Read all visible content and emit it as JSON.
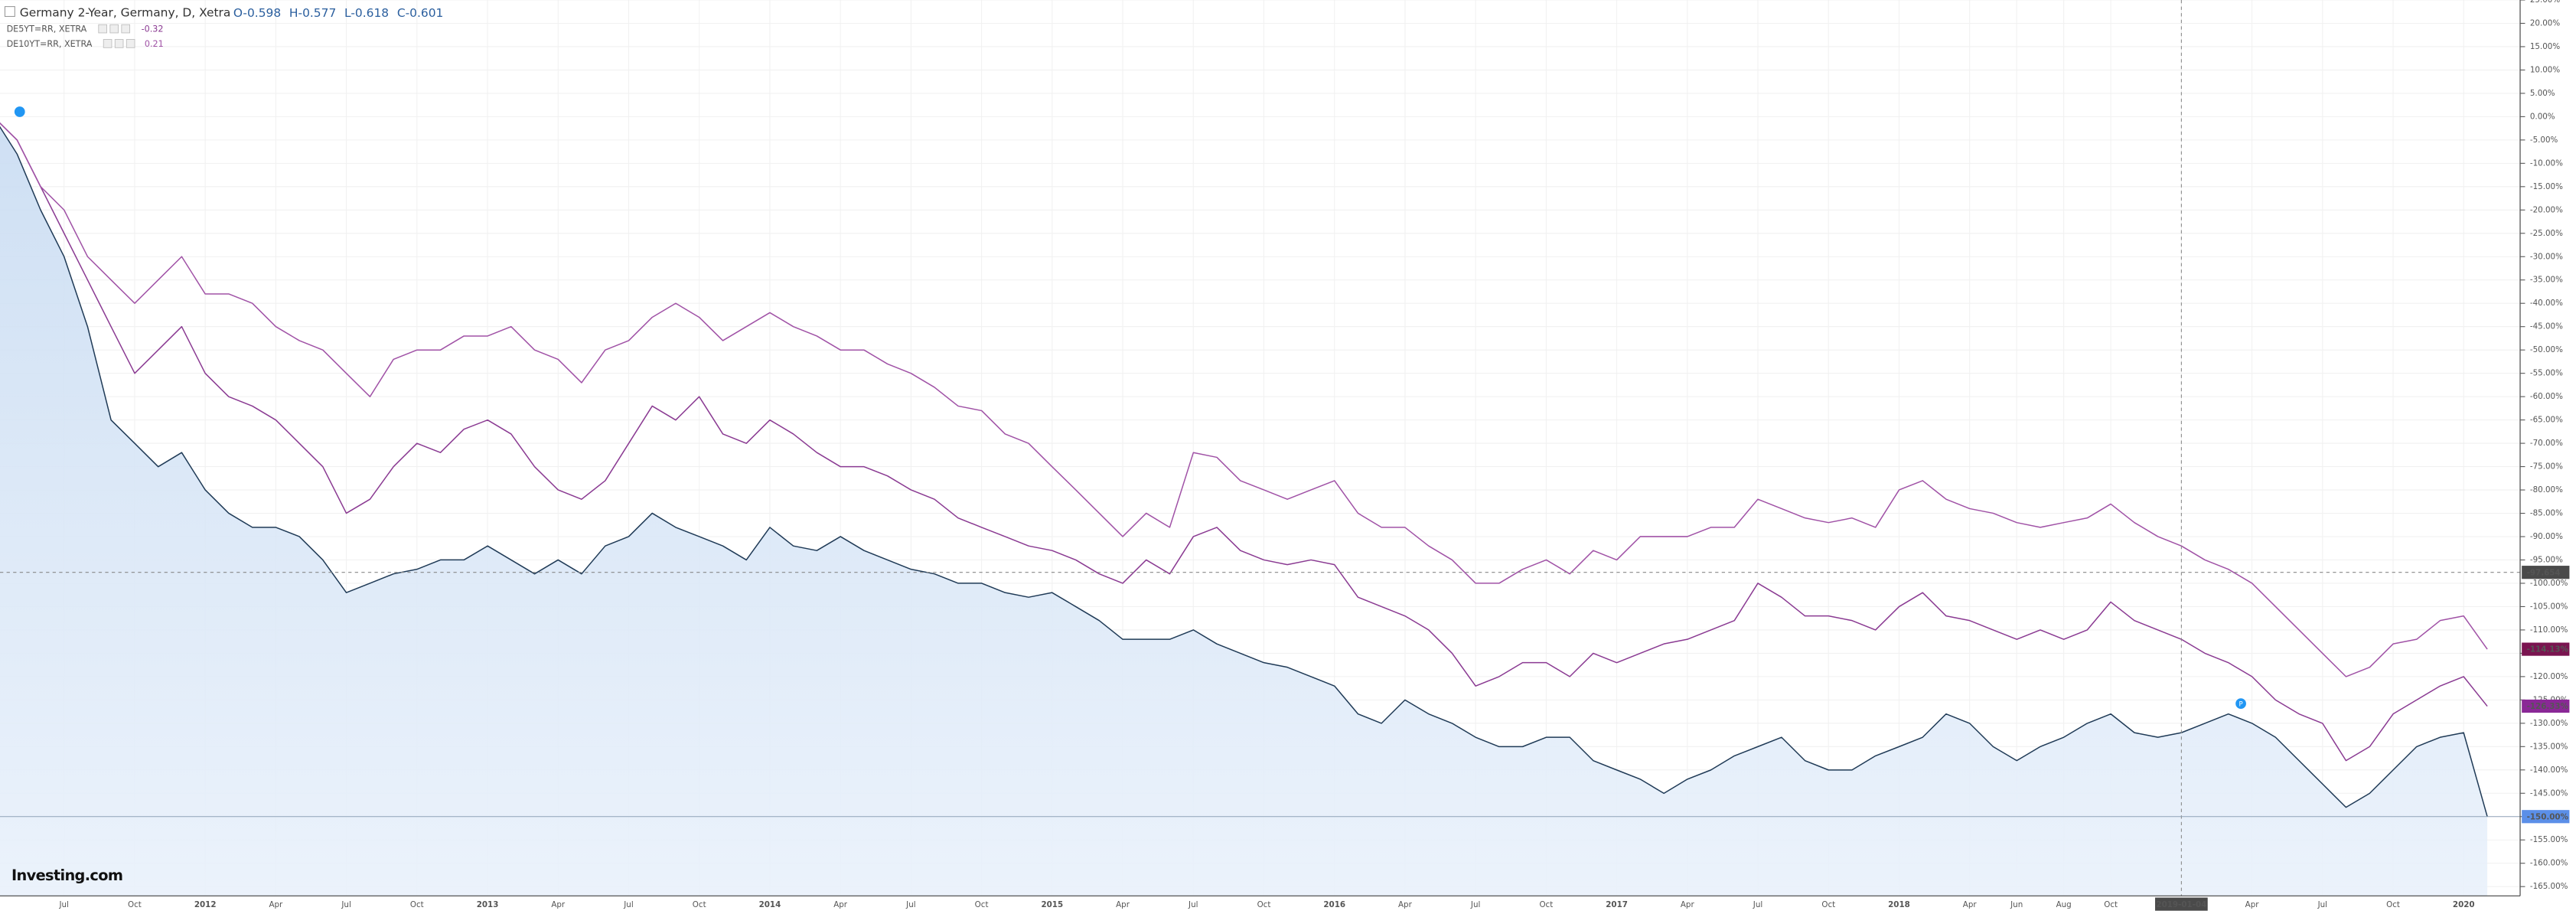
{
  "chart_data": {
    "type": "line",
    "header": {
      "ohlc": [
        "O-0.598",
        "H-0.577",
        "L-0.618",
        "C-0.601"
      ]
    },
    "logo": "Investing.com",
    "categories": [
      null,
      null,
      null,
      "Jul",
      null,
      null,
      "Oct",
      null,
      null,
      "2012",
      null,
      null,
      "Apr",
      null,
      null,
      "Jul",
      null,
      null,
      "Oct",
      null,
      null,
      "2013",
      null,
      null,
      "Apr",
      null,
      null,
      "Jul",
      null,
      null,
      "Oct",
      null,
      null,
      "2014",
      null,
      null,
      "Apr",
      null,
      null,
      "Jul",
      null,
      null,
      "Oct",
      null,
      null,
      "2015",
      null,
      null,
      "Apr",
      null,
      null,
      "Jul",
      null,
      null,
      "Oct",
      null,
      null,
      "2016",
      null,
      null,
      "Apr",
      null,
      null,
      "Jul",
      null,
      null,
      "Oct",
      null,
      null,
      "2017",
      null,
      null,
      "Apr",
      null,
      null,
      "Jul",
      null,
      null,
      "Oct",
      null,
      null,
      "2018",
      null,
      null,
      "Apr",
      null,
      "Jun",
      null,
      "Aug",
      null,
      "Oct",
      null,
      null,
      "2019-01-04",
      null,
      null,
      "Apr",
      null,
      null,
      "Jul",
      null,
      null,
      "Oct",
      null,
      null,
      "2020",
      null
    ],
    "series": [
      {
        "name": "Germany 2-Year, Germany, D, Xetra",
        "color": "#1f3a56",
        "area": true,
        "last_label": "-150.00%",
        "badge_color": "#5b8fe8",
        "values": [
          0,
          -8,
          -20,
          -30,
          -45,
          -65,
          -70,
          -75,
          -72,
          -80,
          -85,
          -88,
          -88,
          -90,
          -95,
          -102,
          -100,
          -98,
          -97,
          -95,
          -95,
          -92,
          -95,
          -98,
          -95,
          -98,
          -92,
          -90,
          -85,
          -88,
          -90,
          -92,
          -95,
          -88,
          -92,
          -93,
          -90,
          -93,
          -95,
          -97,
          -98,
          -100,
          -100,
          -102,
          -103,
          -102,
          -105,
          -108,
          -112,
          -112,
          -112,
          -110,
          -113,
          -115,
          -117,
          -118,
          -120,
          -122,
          -128,
          -130,
          -125,
          -128,
          -130,
          -133,
          -135,
          -135,
          -133,
          -133,
          -138,
          -140,
          -142,
          -145,
          -142,
          -140,
          -137,
          -135,
          -133,
          -138,
          -140,
          -140,
          -137,
          -135,
          -133,
          -128,
          -130,
          -135,
          -138,
          -135,
          -133,
          -130,
          -128,
          -132,
          -133,
          -132,
          -130,
          -128,
          -130,
          -133,
          -138,
          -143,
          -148,
          -145,
          -140,
          -135,
          -133,
          -132,
          -150
        ]
      },
      {
        "name": "DE5YT=RR, XETRA",
        "legend_value": -0.32,
        "color": "#8a3a92",
        "last_label": "-126.33%",
        "badge_color": "#8a2896",
        "values": [
          0,
          -5,
          -15,
          -25,
          -35,
          -45,
          -55,
          -50,
          -45,
          -55,
          -60,
          -62,
          -65,
          -70,
          -75,
          -85,
          -82,
          -75,
          -70,
          -72,
          -67,
          -65,
          -68,
          -75,
          -80,
          -82,
          -78,
          -70,
          -62,
          -65,
          -60,
          -68,
          -70,
          -65,
          -68,
          -72,
          -75,
          -75,
          -77,
          -80,
          -82,
          -86,
          -88,
          -90,
          -92,
          -93,
          -95,
          -98,
          -100,
          -95,
          -98,
          -90,
          -88,
          -93,
          -95,
          -96,
          -95,
          -96,
          -103,
          -105,
          -107,
          -110,
          -115,
          -122,
          -120,
          -117,
          -117,
          -120,
          -115,
          -117,
          -115,
          -113,
          -112,
          -110,
          -108,
          -100,
          -103,
          -107,
          -107,
          -108,
          -110,
          -105,
          -102,
          -107,
          -108,
          -110,
          -112,
          -110,
          -112,
          -110,
          -104,
          -108,
          -110,
          -112,
          -115,
          -117,
          -120,
          -125,
          -128,
          -130,
          -138,
          -135,
          -128,
          -125,
          -122,
          -120,
          -126.33
        ]
      },
      {
        "name": "DE10YT=RR, XETRA",
        "legend_value": 0.21,
        "color": "#a052a6",
        "last_label": "-114.13%",
        "badge_color": "#7a1450",
        "values": [
          0,
          -5,
          -15,
          -20,
          -30,
          -35,
          -40,
          -35,
          -30,
          -38,
          -38,
          -40,
          -45,
          -48,
          -50,
          -55,
          -60,
          -52,
          -50,
          -50,
          -47,
          -47,
          -45,
          -50,
          -52,
          -57,
          -50,
          -48,
          -43,
          -40,
          -43,
          -48,
          -45,
          -42,
          -45,
          -47,
          -50,
          -50,
          -53,
          -55,
          -58,
          -62,
          -63,
          -68,
          -70,
          -75,
          -80,
          -85,
          -90,
          -85,
          -88,
          -72,
          -73,
          -78,
          -80,
          -82,
          -80,
          -78,
          -85,
          -88,
          -88,
          -92,
          -95,
          -100,
          -100,
          -97,
          -95,
          -98,
          -93,
          -95,
          -90,
          -90,
          -90,
          -88,
          -88,
          -82,
          -84,
          -86,
          -87,
          -86,
          -88,
          -80,
          -78,
          -82,
          -84,
          -85,
          -87,
          -88,
          -87,
          -86,
          -83,
          -87,
          -90,
          -92,
          -95,
          -97,
          -100,
          -105,
          -110,
          -115,
          -120,
          -118,
          -113,
          -112,
          -108,
          -107,
          -114.13
        ]
      }
    ],
    "crosshair_value": -97.654,
    "ylim": [
      -167,
      25
    ],
    "yticks": [
      {
        "value": 25,
        "label": "25.00%"
      },
      {
        "value": 20,
        "label": "20.00%"
      },
      {
        "value": 15,
        "label": "15.00%"
      },
      {
        "value": 10,
        "label": "10.00%"
      },
      {
        "value": 5,
        "label": "5.00%"
      },
      {
        "value": 0,
        "label": "0.00%"
      },
      {
        "value": -5,
        "label": "-5.00%"
      },
      {
        "value": -10,
        "label": "-10.00%"
      },
      {
        "value": -15,
        "label": "-15.00%"
      },
      {
        "value": -20,
        "label": "-20.00%"
      },
      {
        "value": -25,
        "label": "-25.00%"
      },
      {
        "value": -30,
        "label": "-30.00%"
      },
      {
        "value": -35,
        "label": "-35.00%"
      },
      {
        "value": -40,
        "label": "-40.00%"
      },
      {
        "value": -45,
        "label": "-45.00%"
      },
      {
        "value": -50,
        "label": "-50.00%"
      },
      {
        "value": -55,
        "label": "-55.00%"
      },
      {
        "value": -60,
        "label": "-60.00%"
      },
      {
        "value": -65,
        "label": "-65.00%"
      },
      {
        "value": -70,
        "label": "-70.00%"
      },
      {
        "value": -75,
        "label": "-75.00%"
      },
      {
        "value": -80,
        "label": "-80.00%"
      },
      {
        "value": -85,
        "label": "-85.00%"
      },
      {
        "value": -90,
        "label": "-90.00%"
      },
      {
        "value": -95,
        "label": "-95.00%"
      },
      {
        "value": -100,
        "label": "-100.00%"
      },
      {
        "value": -105,
        "label": "-105.00%"
      },
      {
        "value": -110,
        "label": "-110.00%"
      },
      {
        "value": -115,
        "label": "-115.00%"
      },
      {
        "value": -120,
        "label": "-120.00%"
      },
      {
        "value": -125,
        "label": "-125.00%"
      },
      {
        "value": -130,
        "label": "-130.00%"
      },
      {
        "value": -135,
        "label": "-135.00%"
      },
      {
        "value": -140,
        "label": "-140.00%"
      },
      {
        "value": -145,
        "label": "-145.00%"
      },
      {
        "value": -150,
        "label": "-150.00%"
      },
      {
        "value": -155,
        "label": "-155.00%"
      },
      {
        "value": -160,
        "label": "-160.00%"
      },
      {
        "value": -165,
        "label": "-165.00%"
      }
    ],
    "grid": true
  }
}
